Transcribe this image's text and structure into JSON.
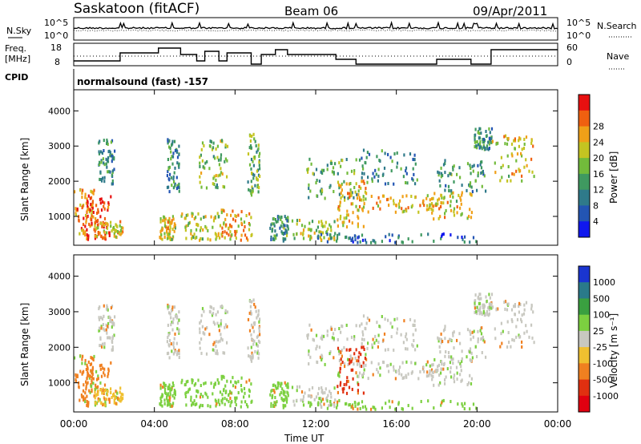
{
  "header": {
    "station": "Saskatoon (fitACF)",
    "beam": "Beam 06",
    "date": "09/Apr/2011"
  },
  "noise_panel": {
    "left_label": "N.Sky",
    "right_label": "N.Search",
    "y_ticks": [
      "10^5",
      "10^0"
    ],
    "right_ticks": [
      "10^5",
      "10^0"
    ]
  },
  "freq_panel": {
    "left_label_line1": "Freq.",
    "left_label_line2": "[MHz]",
    "y_ticks": [
      "18",
      "8"
    ],
    "right_label": "Nave",
    "right_ticks": [
      "60",
      "0"
    ]
  },
  "cpid": {
    "label": "CPID",
    "text": "normalsound (fast) -157"
  },
  "power_panel": {
    "ylabel": "Slant Range [km]",
    "y_ticks": [
      "1000",
      "2000",
      "3000",
      "4000"
    ],
    "colorbar_label": "Power [dB]",
    "colorbar_ticks": [
      "4",
      "8",
      "12",
      "16",
      "20",
      "24",
      "28"
    ],
    "colorbar_colors": [
      "#1018ee",
      "#2355b3",
      "#2f7a8a",
      "#3f9960",
      "#72bb3b",
      "#c4c421",
      "#f0a018",
      "#f06010",
      "#e81010"
    ]
  },
  "velocity_panel": {
    "ylabel": "Slant Range [km]",
    "y_ticks": [
      "1000",
      "2000",
      "3000",
      "4000"
    ],
    "colorbar_label": "Velocity [m s⁻¹]",
    "colorbar_ticks": [
      "1000",
      "500",
      "100",
      "25",
      "-25",
      "-100",
      "-500",
      "-1000"
    ],
    "colorbar_colors": [
      "#1a35d0",
      "#2a7a8a",
      "#3aa040",
      "#7cd040",
      "#c8c8c0",
      "#f0c030",
      "#f08020",
      "#e03010",
      "#e00010"
    ]
  },
  "x_axis": {
    "tick_labels": [
      "00:00",
      "04:00",
      "08:00",
      "12:00",
      "16:00",
      "20:00",
      "00:00"
    ],
    "xlabel": "Time UT"
  },
  "chart_data": {
    "type": "heatmap",
    "title": "Saskatoon (fitACF) Beam 06 09/Apr/2011",
    "xlabel": "Time UT",
    "ylabel": "Slant Range [km]",
    "xlim": [
      0,
      24
    ],
    "ylim": [
      180,
      4600
    ],
    "panels": [
      "Power [dB]",
      "Velocity [m s-1]"
    ],
    "freq_steps_hours": [
      [
        0,
        2.3,
        10
      ],
      [
        2.3,
        4.2,
        15
      ],
      [
        4.2,
        5.3,
        18
      ],
      [
        5.3,
        6.1,
        14
      ],
      [
        6.1,
        6.5,
        10
      ],
      [
        6.5,
        7.2,
        16
      ],
      [
        7.2,
        7.6,
        10
      ],
      [
        7.6,
        8.8,
        15
      ],
      [
        8.8,
        9.3,
        8
      ],
      [
        9.3,
        10.0,
        14
      ],
      [
        10.0,
        10.6,
        17
      ],
      [
        10.6,
        11.0,
        14
      ],
      [
        11.0,
        13.0,
        14
      ],
      [
        13.0,
        14.0,
        11
      ],
      [
        14.0,
        18.0,
        8
      ],
      [
        18.0,
        19.7,
        11
      ],
      [
        19.7,
        20.7,
        8
      ],
      [
        20.7,
        24.0,
        17
      ]
    ],
    "scatter_regions": [
      {
        "t0": 0.0,
        "t1": 1.0,
        "r0": 350,
        "r1": 1800,
        "power": 22,
        "velocity": -100
      },
      {
        "t0": 0.6,
        "t1": 1.8,
        "r0": 300,
        "r1": 1600,
        "power": 28,
        "velocity": -100
      },
      {
        "t0": 1.0,
        "t1": 2.4,
        "r0": 350,
        "r1": 850,
        "power": 20,
        "velocity": -25
      },
      {
        "t0": 1.2,
        "t1": 2.0,
        "r0": 1900,
        "r1": 3200,
        "power": 8,
        "velocity": 25
      },
      {
        "t0": 4.2,
        "t1": 5.0,
        "r0": 300,
        "r1": 1000,
        "power": 18,
        "velocity": 100
      },
      {
        "t0": 4.6,
        "t1": 5.2,
        "r0": 1700,
        "r1": 3200,
        "power": 8,
        "velocity": 25
      },
      {
        "t0": 5.3,
        "t1": 7.2,
        "r0": 300,
        "r1": 1100,
        "power": 16,
        "velocity": 100
      },
      {
        "t0": 6.2,
        "t1": 7.6,
        "r0": 1800,
        "r1": 3200,
        "power": 14,
        "velocity": 25
      },
      {
        "t0": 7.2,
        "t1": 8.8,
        "r0": 300,
        "r1": 1200,
        "power": 20,
        "velocity": 100
      },
      {
        "t0": 8.6,
        "t1": 9.2,
        "r0": 1600,
        "r1": 3400,
        "power": 12,
        "velocity": 25
      },
      {
        "t0": 9.7,
        "t1": 10.6,
        "r0": 300,
        "r1": 1000,
        "power": 10,
        "velocity": 100
      },
      {
        "t0": 10.8,
        "t1": 13.0,
        "r0": 300,
        "r1": 900,
        "power": 16,
        "velocity": 25
      },
      {
        "t0": 11.5,
        "t1": 14.0,
        "r0": 1500,
        "r1": 2700,
        "power": 12,
        "velocity": 25
      },
      {
        "t0": 13.0,
        "t1": 14.5,
        "r0": 700,
        "r1": 2000,
        "power": 20,
        "velocity": -500
      },
      {
        "t0": 14.0,
        "t1": 18.0,
        "r0": 1100,
        "r1": 1600,
        "power": 20,
        "velocity": 25
      },
      {
        "t0": 14.0,
        "t1": 17.0,
        "r0": 1900,
        "r1": 2900,
        "power": 8,
        "velocity": 25
      },
      {
        "t0": 17.5,
        "t1": 19.7,
        "r0": 900,
        "r1": 1700,
        "power": 18,
        "velocity": 25
      },
      {
        "t0": 18.0,
        "t1": 20.4,
        "r0": 1700,
        "r1": 2600,
        "power": 10,
        "velocity": 25
      },
      {
        "t0": 19.8,
        "t1": 20.7,
        "r0": 2900,
        "r1": 3500,
        "power": 10,
        "velocity": 25
      },
      {
        "t0": 20.7,
        "t1": 22.8,
        "r0": 2000,
        "r1": 3300,
        "power": 18,
        "velocity": 25
      },
      {
        "t0": 12.0,
        "t1": 20.0,
        "r0": 250,
        "r1": 500,
        "power": 6,
        "velocity": 100
      }
    ]
  }
}
